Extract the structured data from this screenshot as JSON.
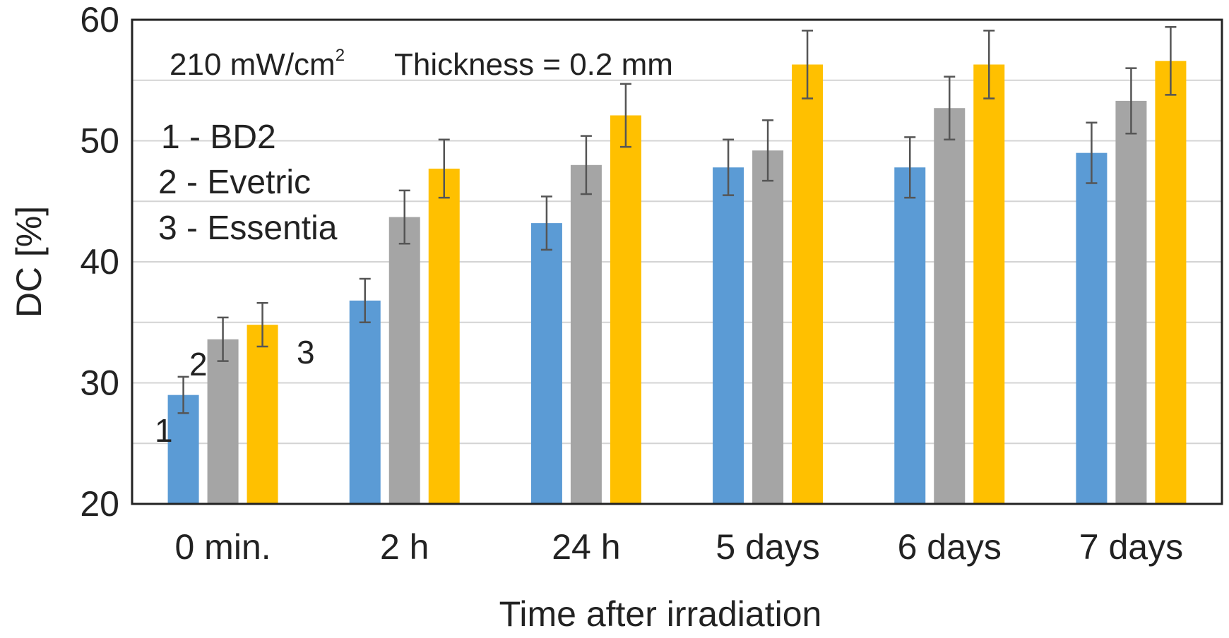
{
  "chart_data": {
    "type": "bar",
    "title": "",
    "xlabel": "Time after irradiation",
    "ylabel": "DC [%]",
    "ylim": [
      20,
      60
    ],
    "yticks": [
      20,
      30,
      40,
      50,
      60
    ],
    "grid": true,
    "categories": [
      "0 min.",
      "2 h",
      "24 h",
      "5 days",
      "6 days",
      "7 days"
    ],
    "series": [
      {
        "name": "BD2",
        "index": "1",
        "color": "#5b9bd5",
        "values": [
          29.0,
          36.8,
          43.2,
          47.8,
          47.8,
          49.0
        ],
        "errors": [
          1.5,
          1.8,
          2.2,
          2.3,
          2.5,
          2.5
        ]
      },
      {
        "name": "Evetric",
        "index": "2",
        "color": "#a5a5a5",
        "values": [
          33.6,
          43.7,
          48.0,
          49.2,
          52.7,
          53.3
        ],
        "errors": [
          1.8,
          2.2,
          2.4,
          2.5,
          2.6,
          2.7
        ]
      },
      {
        "name": "Essentia",
        "index": "3",
        "color": "#ffc000",
        "values": [
          34.8,
          47.7,
          52.1,
          56.3,
          56.3,
          56.6
        ],
        "errors": [
          1.8,
          2.4,
          2.6,
          2.8,
          2.8,
          2.8
        ]
      }
    ],
    "annotation": {
      "intensity": "210 mW/cm",
      "intensity_sup": "2",
      "thickness": "Thickness = 0.2 mm"
    },
    "legend_lines": [
      "1 - BD2",
      "2 - Evetric",
      "3 - Essentia"
    ],
    "bar_labels": [
      "1",
      "2",
      "3"
    ]
  }
}
